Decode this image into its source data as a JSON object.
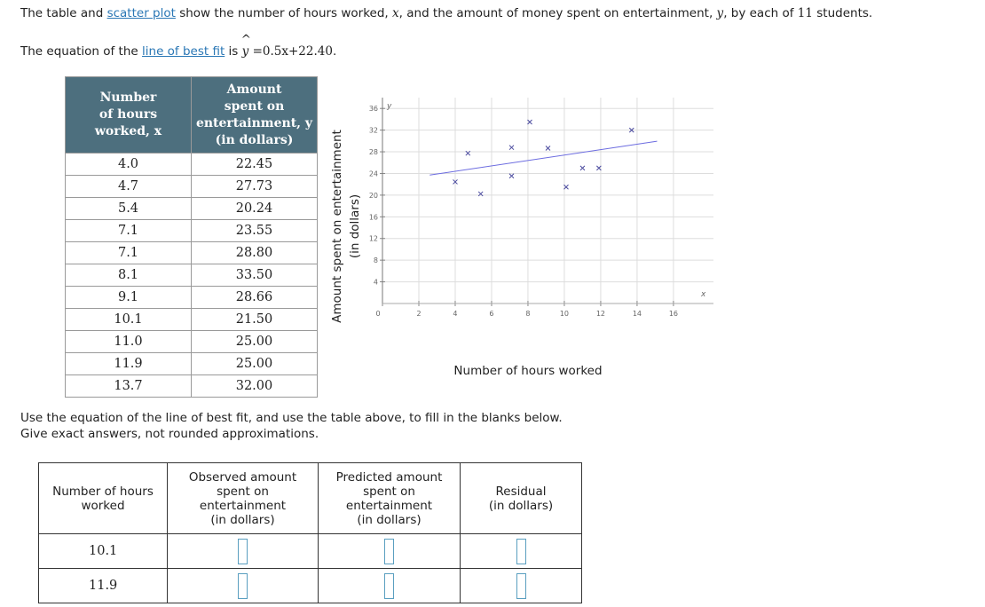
{
  "intro": [
    "The table and ",
    "scatter plot",
    " show the number of hours worked, ",
    "x",
    ", and the amount of money spent on entertainment, ",
    "y",
    ", by each of ",
    "11",
    " students."
  ],
  "equation": [
    "The equation of the ",
    "line of best fit",
    " is ",
    "y",
    "=",
    "0.5x+22.40",
    "."
  ],
  "data_table": {
    "headers": [
      [
        "Number",
        "of hours",
        "worked, x"
      ],
      [
        "Amount",
        "spent on",
        "entertainment, y",
        "(in dollars)"
      ]
    ],
    "rows": [
      [
        "4.0",
        "22.45"
      ],
      [
        "4.7",
        "27.73"
      ],
      [
        "5.4",
        "20.24"
      ],
      [
        "7.1",
        "23.55"
      ],
      [
        "7.1",
        "28.80"
      ],
      [
        "8.1",
        "33.50"
      ],
      [
        "9.1",
        "28.66"
      ],
      [
        "10.1",
        "21.50"
      ],
      [
        "11.0",
        "25.00"
      ],
      [
        "11.9",
        "25.00"
      ],
      [
        "13.7",
        "32.00"
      ]
    ]
  },
  "chart_data": {
    "type": "scatter",
    "x": [
      4.0,
      4.7,
      5.4,
      7.1,
      7.1,
      8.1,
      9.1,
      10.1,
      11.0,
      11.9,
      13.7
    ],
    "y": [
      22.45,
      27.73,
      20.24,
      23.55,
      28.8,
      33.5,
      28.66,
      21.5,
      25.0,
      25.0,
      32.0
    ],
    "color": "#4a4a9e",
    "best_fit": {
      "x": [
        2.6,
        15.1
      ],
      "y": [
        23.7,
        29.95
      ],
      "color": "#6c6ce0"
    },
    "xlim": [
      0,
      18.2
    ],
    "ylim": [
      0,
      38
    ],
    "xticks": [
      0,
      2,
      4,
      6,
      8,
      10,
      12,
      14,
      16
    ],
    "yticks": [
      4,
      8,
      12,
      16,
      20,
      24,
      28,
      32,
      36
    ],
    "x_axis_letter": "x",
    "y_axis_letter": "y",
    "xlabel": "Number of hours worked",
    "ylabel": [
      "Amount spent on entertainment",
      "(in dollars)"
    ],
    "grid": true
  },
  "instructions": [
    "Use the equation of the line of best fit, and use the table above, to fill in the blanks below.",
    "Give exact answers, not rounded approximations."
  ],
  "answer_table": {
    "headers": [
      [
        "Number of hours",
        "worked"
      ],
      [
        "Observed amount",
        "spent on",
        "entertainment",
        "(in dollars)"
      ],
      [
        "Predicted amount",
        "spent on",
        "entertainment",
        "(in dollars)"
      ],
      [
        "Residual",
        "(in dollars)"
      ]
    ],
    "rows": [
      "10.1",
      "11.9"
    ]
  }
}
